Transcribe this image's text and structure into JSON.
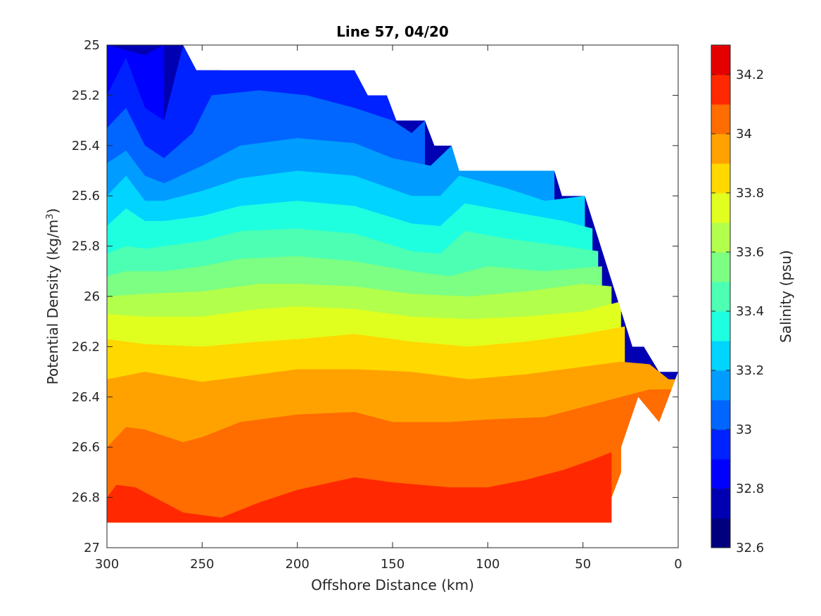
{
  "chart_data": {
    "type": "contourf",
    "title": "Line 57, 04/20",
    "xlabel": "Offshore Distance (km)",
    "ylabel": "Potential Density (kg/m",
    "ylabel_sup": "3",
    "ylabel_tail": ")",
    "colorbar_label": "Salinity (psu)",
    "xlim": [
      300,
      0
    ],
    "x_reversed": true,
    "ylim": [
      25,
      27
    ],
    "y_reversed": true,
    "x_ticks": [
      300,
      250,
      200,
      150,
      100,
      50,
      0
    ],
    "x_tick_labels": [
      "300",
      "250",
      "200",
      "150",
      "100",
      "50",
      "0"
    ],
    "y_ticks": [
      25,
      25.2,
      25.4,
      25.6,
      25.8,
      26,
      26.2,
      26.4,
      26.6,
      26.8,
      27
    ],
    "y_tick_labels": [
      "25",
      "25.2",
      "25.4",
      "25.6",
      "25.8",
      "26",
      "26.2",
      "26.4",
      "26.6",
      "26.8",
      "27"
    ],
    "colorbar_ticks": [
      32.6,
      32.8,
      33.0,
      33.2,
      33.4,
      33.6,
      33.8,
      34.0,
      34.2
    ],
    "colorbar_tick_labels": [
      "32.6",
      "32.8",
      "33",
      "33.2",
      "33.4",
      "33.6",
      "33.8",
      "34",
      "34.2"
    ],
    "levels": [
      32.6,
      32.7,
      32.8,
      32.9,
      33.0,
      33.1,
      33.2,
      33.3,
      33.4,
      33.5,
      33.6,
      33.7,
      33.8,
      33.9,
      34.0,
      34.1,
      34.2,
      34.3
    ],
    "level_colors": [
      "#00007f",
      "#0000b2",
      "#0000ff",
      "#0022ff",
      "#0066ff",
      "#009cff",
      "#00d4ff",
      "#1effe0",
      "#4cffb2",
      "#7cff82",
      "#b2ff4c",
      "#e0ff1e",
      "#ffd800",
      "#ffa200",
      "#ff6c00",
      "#ff2800",
      "#e50000",
      "#b20000"
    ],
    "data_top_boundary": [
      [
        300,
        25.0
      ],
      [
        260,
        25.0
      ],
      [
        253,
        25.1
      ],
      [
        170,
        25.1
      ],
      [
        163,
        25.2
      ],
      [
        153,
        25.2
      ],
      [
        148,
        25.3
      ],
      [
        133,
        25.3
      ],
      [
        128,
        25.4
      ],
      [
        119,
        25.4
      ],
      [
        115,
        25.5
      ],
      [
        65,
        25.5
      ],
      [
        61,
        25.6
      ],
      [
        49,
        25.6
      ],
      [
        24,
        26.2
      ],
      [
        18,
        26.2
      ],
      [
        10,
        26.3
      ],
      [
        0,
        26.3
      ]
    ],
    "data_bottom_boundary": [
      [
        300,
        26.9
      ],
      [
        35,
        26.9
      ],
      [
        35,
        26.8
      ],
      [
        30,
        26.7
      ],
      [
        30,
        26.6
      ],
      [
        21,
        26.4
      ],
      [
        10,
        26.5
      ],
      [
        0,
        26.3
      ]
    ],
    "isolines": [
      {
        "level": 32.8,
        "points": [
          [
            300,
            25.0
          ],
          [
            280,
            25.04
          ],
          [
            270,
            25.0
          ]
        ]
      },
      {
        "level": 32.9,
        "points": [
          [
            300,
            25.2
          ],
          [
            290,
            25.05
          ],
          [
            280,
            25.25
          ],
          [
            270,
            25.3
          ],
          [
            260,
            25.0
          ],
          [
            240,
            25.1
          ],
          [
            200,
            25.1
          ],
          [
            170,
            25.1
          ],
          [
            163,
            25.2
          ],
          [
            153,
            25.2
          ],
          [
            148,
            25.3
          ]
        ]
      },
      {
        "level": 33.0,
        "points": [
          [
            300,
            25.33
          ],
          [
            290,
            25.25
          ],
          [
            280,
            25.4
          ],
          [
            270,
            25.45
          ],
          [
            255,
            25.35
          ],
          [
            245,
            25.2
          ],
          [
            220,
            25.18
          ],
          [
            195,
            25.2
          ],
          [
            170,
            25.25
          ],
          [
            150,
            25.3
          ],
          [
            140,
            25.35
          ],
          [
            133,
            25.3
          ]
        ]
      },
      {
        "level": 33.1,
        "points": [
          [
            300,
            25.47
          ],
          [
            290,
            25.42
          ],
          [
            280,
            25.52
          ],
          [
            270,
            25.55
          ],
          [
            250,
            25.48
          ],
          [
            230,
            25.4
          ],
          [
            200,
            25.37
          ],
          [
            170,
            25.39
          ],
          [
            150,
            25.45
          ],
          [
            130,
            25.48
          ],
          [
            119,
            25.4
          ],
          [
            115,
            25.5
          ],
          [
            65,
            25.5
          ]
        ]
      },
      {
        "level": 33.2,
        "points": [
          [
            300,
            25.6
          ],
          [
            290,
            25.52
          ],
          [
            280,
            25.62
          ],
          [
            270,
            25.62
          ],
          [
            250,
            25.58
          ],
          [
            230,
            25.53
          ],
          [
            200,
            25.5
          ],
          [
            170,
            25.52
          ],
          [
            140,
            25.6
          ],
          [
            125,
            25.6
          ],
          [
            115,
            25.52
          ],
          [
            90,
            25.57
          ],
          [
            70,
            25.62
          ],
          [
            49,
            25.6
          ]
        ]
      },
      {
        "level": 33.3,
        "points": [
          [
            300,
            25.72
          ],
          [
            290,
            25.65
          ],
          [
            280,
            25.7
          ],
          [
            270,
            25.7
          ],
          [
            250,
            25.68
          ],
          [
            230,
            25.64
          ],
          [
            200,
            25.62
          ],
          [
            170,
            25.64
          ],
          [
            140,
            25.71
          ],
          [
            125,
            25.72
          ],
          [
            112,
            25.63
          ],
          [
            90,
            25.66
          ],
          [
            60,
            25.7
          ],
          [
            45,
            25.73
          ]
        ]
      },
      {
        "level": 33.4,
        "points": [
          [
            300,
            25.83
          ],
          [
            290,
            25.8
          ],
          [
            280,
            25.81
          ],
          [
            270,
            25.8
          ],
          [
            250,
            25.78
          ],
          [
            230,
            25.74
          ],
          [
            200,
            25.73
          ],
          [
            170,
            25.75
          ],
          [
            140,
            25.82
          ],
          [
            125,
            25.83
          ],
          [
            112,
            25.74
          ],
          [
            90,
            25.77
          ],
          [
            60,
            25.8
          ],
          [
            42,
            25.82
          ]
        ]
      },
      {
        "level": 33.5,
        "points": [
          [
            300,
            25.92
          ],
          [
            290,
            25.9
          ],
          [
            270,
            25.9
          ],
          [
            250,
            25.88
          ],
          [
            230,
            25.85
          ],
          [
            200,
            25.84
          ],
          [
            170,
            25.86
          ],
          [
            140,
            25.9
          ],
          [
            120,
            25.92
          ],
          [
            100,
            25.88
          ],
          [
            70,
            25.9
          ],
          [
            40,
            25.88
          ]
        ]
      },
      {
        "level": 33.6,
        "points": [
          [
            300,
            26.0
          ],
          [
            280,
            25.99
          ],
          [
            250,
            25.98
          ],
          [
            220,
            25.95
          ],
          [
            200,
            25.95
          ],
          [
            170,
            25.96
          ],
          [
            140,
            25.99
          ],
          [
            110,
            26.0
          ],
          [
            80,
            25.98
          ],
          [
            50,
            25.95
          ],
          [
            35,
            25.96
          ]
        ]
      },
      {
        "level": 33.7,
        "points": [
          [
            300,
            26.07
          ],
          [
            280,
            26.08
          ],
          [
            250,
            26.08
          ],
          [
            220,
            26.05
          ],
          [
            200,
            26.04
          ],
          [
            170,
            26.05
          ],
          [
            140,
            26.08
          ],
          [
            110,
            26.09
          ],
          [
            80,
            26.08
          ],
          [
            50,
            26.06
          ],
          [
            30,
            26.02
          ]
        ]
      },
      {
        "level": 33.8,
        "points": [
          [
            300,
            26.17
          ],
          [
            280,
            26.19
          ],
          [
            250,
            26.2
          ],
          [
            220,
            26.18
          ],
          [
            200,
            26.17
          ],
          [
            170,
            26.15
          ],
          [
            140,
            26.18
          ],
          [
            110,
            26.2
          ],
          [
            80,
            26.18
          ],
          [
            50,
            26.15
          ],
          [
            28,
            26.12
          ]
        ]
      },
      {
        "level": 33.9,
        "points": [
          [
            300,
            26.33
          ],
          [
            280,
            26.3
          ],
          [
            250,
            26.34
          ],
          [
            220,
            26.31
          ],
          [
            200,
            26.29
          ],
          [
            170,
            26.29
          ],
          [
            140,
            26.3
          ],
          [
            110,
            26.33
          ],
          [
            80,
            26.31
          ],
          [
            50,
            26.28
          ],
          [
            30,
            26.26
          ],
          [
            15,
            26.27
          ],
          [
            5,
            26.33
          ]
        ]
      },
      {
        "level": 34.0,
        "points": [
          [
            300,
            26.6
          ],
          [
            290,
            26.52
          ],
          [
            280,
            26.53
          ],
          [
            260,
            26.58
          ],
          [
            250,
            26.56
          ],
          [
            230,
            26.5
          ],
          [
            200,
            26.47
          ],
          [
            170,
            26.46
          ],
          [
            150,
            26.5
          ],
          [
            120,
            26.5
          ],
          [
            100,
            26.49
          ],
          [
            70,
            26.48
          ],
          [
            50,
            26.44
          ],
          [
            30,
            26.4
          ],
          [
            15,
            26.37
          ],
          [
            5,
            26.37
          ]
        ]
      },
      {
        "level": 34.1,
        "points": [
          [
            300,
            26.8
          ],
          [
            295,
            26.75
          ],
          [
            285,
            26.76
          ],
          [
            275,
            26.8
          ],
          [
            260,
            26.86
          ],
          [
            240,
            26.88
          ],
          [
            220,
            26.82
          ],
          [
            200,
            26.77
          ],
          [
            170,
            26.72
          ],
          [
            150,
            26.74
          ],
          [
            120,
            26.76
          ],
          [
            100,
            26.76
          ],
          [
            80,
            26.73
          ],
          [
            60,
            26.69
          ],
          [
            45,
            26.65
          ],
          [
            35,
            26.62
          ]
        ]
      }
    ]
  }
}
